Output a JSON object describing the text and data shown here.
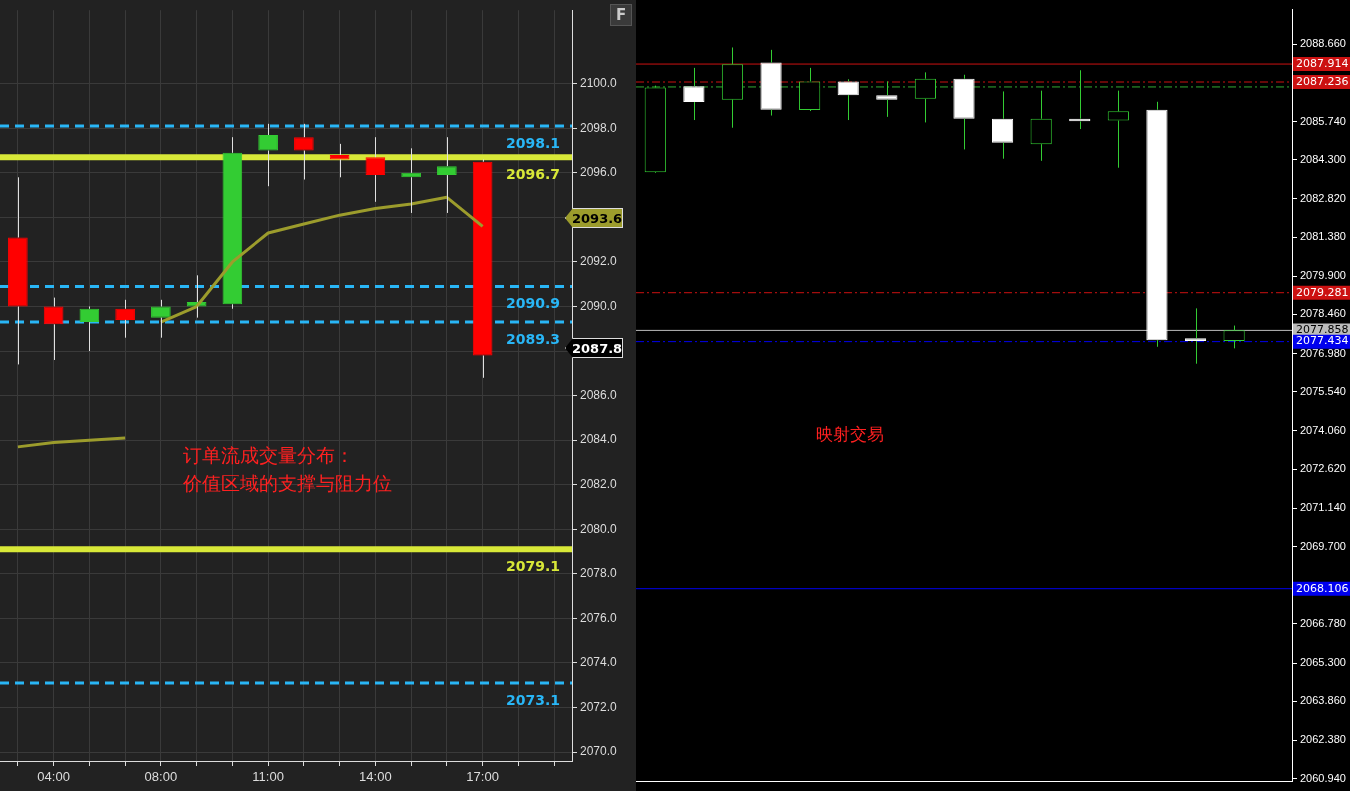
{
  "chart_data": [
    {
      "type": "candlestick",
      "categories": [
        null,
        "04:00",
        null,
        null,
        "08:00",
        null,
        null,
        "11:00",
        null,
        null,
        "14:00",
        null,
        null,
        "17:00",
        null,
        null
      ],
      "series": [
        {
          "color": "#e0e0e0",
          "colors": [
            "#ff0000",
            "#ff0000",
            "#33cc33",
            "#ff0000",
            "#33cc33",
            "#33cc33",
            "#33cc33",
            "#33cc33",
            "#ff0000",
            "#ff0000",
            "#ff0000",
            "#33cc33",
            "#33cc33",
            "#ff0000",
            null,
            null
          ],
          "ohlc": [
            [
              2093.1,
              2095.8,
              2087.4,
              2090.0
            ],
            [
              2090.0,
              2090.4,
              2087.6,
              2089.2
            ],
            [
              2089.3,
              2090.0,
              2088.0,
              2089.9
            ],
            [
              2089.9,
              2090.3,
              2088.6,
              2089.4
            ],
            [
              2089.5,
              2090.3,
              2088.6,
              2090.0
            ],
            [
              2090.0,
              2091.4,
              2089.5,
              2090.2
            ],
            [
              2090.1,
              2097.6,
              2089.9,
              2096.9
            ],
            [
              2097.0,
              2098.2,
              2095.4,
              2097.7
            ],
            [
              2097.6,
              2098.2,
              2095.7,
              2097.0
            ],
            [
              2096.8,
              2097.3,
              2095.8,
              2096.6
            ],
            [
              2096.7,
              2097.6,
              2094.7,
              2095.9
            ],
            [
              2095.8,
              2097.1,
              2094.2,
              2096.0
            ],
            [
              2095.9,
              2097.6,
              2094.2,
              2096.3
            ],
            [
              2096.5,
              2096.6,
              2086.8,
              2087.8
            ],
            null,
            null
          ]
        },
        {
          "type": "line",
          "color": "#9c9c2c",
          "values": [
            2083.7,
            2083.9,
            2084.0,
            2084.1,
            null,
            null,
            null,
            null,
            null,
            null,
            null,
            null,
            null,
            null,
            null,
            null
          ]
        },
        {
          "type": "line",
          "color": "#9c9c2c",
          "values": [
            null,
            null,
            null,
            null,
            2089.3,
            2090.0,
            2092.0,
            2093.3,
            2093.7,
            2094.1,
            2094.4,
            2094.6,
            2094.9,
            2093.6,
            null,
            null
          ]
        }
      ],
      "ylim": [
        2069.6,
        2103.3
      ],
      "yticks": [
        {
          "value": 2070,
          "label": "2070.0"
        },
        {
          "value": 2072,
          "label": "2072.0"
        },
        {
          "value": 2074,
          "label": "2074.0"
        },
        {
          "value": 2076,
          "label": "2076.0"
        },
        {
          "value": 2078,
          "label": "2078.0"
        },
        {
          "value": 2080,
          "label": "2080.0"
        },
        {
          "value": 2082,
          "label": "2082.0"
        },
        {
          "value": 2084,
          "label": "2084.0"
        },
        {
          "value": 2086,
          "label": "2086.0"
        },
        {
          "value": 2088,
          "label": null
        },
        {
          "value": 2090,
          "label": "2090.0"
        },
        {
          "value": 2092,
          "label": "2092.0"
        },
        {
          "value": 2094,
          "label": null
        },
        {
          "value": 2096,
          "label": "2096.0"
        },
        {
          "value": 2098,
          "label": "2098.0"
        },
        {
          "value": 2100,
          "label": "2100.0"
        }
      ],
      "grid": true,
      "ref_lines": [
        {
          "axis": "y",
          "value": 2098.1,
          "label": "2098.1",
          "color": "#29b6f6",
          "line_style": "dashed"
        },
        {
          "axis": "y",
          "value": 2096.7,
          "label": "2096.7",
          "color": "#d8e838",
          "line_style": "solid"
        },
        {
          "axis": "y",
          "value": 2090.9,
          "label": "2090.9",
          "color": "#29b6f6",
          "line_style": "dashed"
        },
        {
          "axis": "y",
          "value": 2089.3,
          "label": "2089.3",
          "color": "#29b6f6",
          "line_style": "dashed"
        },
        {
          "axis": "y",
          "value": 2079.1,
          "label": "2079.1",
          "color": "#d8e838",
          "line_style": "solid"
        },
        {
          "axis": "y",
          "value": 2073.1,
          "label": "2073.1",
          "color": "#29b6f6",
          "line_style": "dashed"
        }
      ],
      "annotations": [
        "F",
        "订单流成交量分布：",
        "价值区域的支撑与阻力位",
        "2093.6",
        "2087.8"
      ]
    },
    {
      "type": "candlestick",
      "categories": [
        null,
        null,
        null,
        null,
        null,
        null,
        null,
        null,
        null,
        null,
        null,
        null,
        null,
        null,
        null,
        null,
        null
      ],
      "series": [
        {
          "color": "#33cc33",
          "colors": [
            "#33cc33",
            "#ffffff",
            "#33cc33",
            "#ffffff",
            "#33cc33",
            "#ffffff",
            "#ffffff",
            "#33cc33",
            "#ffffff",
            "#ffffff",
            "#33cc33",
            "#ffffff",
            "#33cc33",
            "#ffffff",
            "#ffffff",
            "#33cc33",
            null
          ],
          "ohlc": [
            [
              2083.83,
              2087.1,
              2083.8,
              2087.03
            ],
            [
              2087.08,
              2087.77,
              2085.8,
              2086.48
            ],
            [
              2086.57,
              2088.54,
              2085.51,
              2087.91
            ],
            [
              2087.97,
              2088.45,
              2085.97,
              2086.19
            ],
            [
              2086.18,
              2087.77,
              2086.14,
              2087.26
            ],
            [
              2087.26,
              2087.34,
              2085.8,
              2086.74
            ],
            [
              2086.74,
              2087.26,
              2085.92,
              2086.57
            ],
            [
              2086.6,
              2087.6,
              2085.71,
              2087.36
            ],
            [
              2087.36,
              2087.51,
              2084.69,
              2085.85
            ],
            [
              2085.85,
              2086.88,
              2084.34,
              2084.94
            ],
            [
              2084.89,
              2086.91,
              2084.26,
              2085.85
            ],
            [
              2085.85,
              2087.68,
              2085.46,
              2085.75
            ],
            [
              2085.78,
              2086.91,
              2084.0,
              2086.13
            ],
            [
              2086.19,
              2086.49,
              2077.24,
              2077.49
            ],
            [
              2077.56,
              2078.69,
              2076.6,
              2077.46
            ],
            [
              2077.46,
              2078.04,
              2077.18,
              2077.86
            ],
            null
          ]
        }
      ],
      "ylim": [
        2060.83,
        2089.97
      ],
      "yticks": [
        {
          "value": 2060.94,
          "label": "2060.940"
        },
        {
          "value": 2062.38,
          "label": "2062.380"
        },
        {
          "value": 2063.86,
          "label": "2063.860"
        },
        {
          "value": 2065.3,
          "label": "2065.300"
        },
        {
          "value": 2066.78,
          "label": "2066.780"
        },
        {
          "value": 2069.7,
          "label": "2069.700"
        },
        {
          "value": 2071.14,
          "label": "2071.140"
        },
        {
          "value": 2072.62,
          "label": "2072.620"
        },
        {
          "value": 2074.06,
          "label": "2074.060"
        },
        {
          "value": 2075.54,
          "label": "2075.540"
        },
        {
          "value": 2076.98,
          "label": "2076.980"
        },
        {
          "value": 2078.46,
          "label": "2078.460"
        },
        {
          "value": 2079.9,
          "label": "2079.900"
        },
        {
          "value": 2081.38,
          "label": "2081.380"
        },
        {
          "value": 2082.82,
          "label": "2082.820"
        },
        {
          "value": 2084.3,
          "label": "2084.300"
        },
        {
          "value": 2085.74,
          "label": "2085.740"
        },
        {
          "value": 2088.66,
          "label": "2088.660"
        }
      ],
      "tick_labels": "y",
      "ref_lines": [
        {
          "axis": "y",
          "value": 2087.914,
          "label": "2087.914",
          "color": "#cc1111",
          "line_style": "solid"
        },
        {
          "axis": "y",
          "value": 2087.236,
          "label": "2087.236",
          "color": "#cc1111",
          "line_style": "dashed"
        },
        {
          "axis": "y",
          "value": 2087.05,
          "color": "#33aa33",
          "line_style": "dashed"
        },
        {
          "axis": "y",
          "value": 2079.281,
          "label": "2079.281",
          "color": "#cc1111",
          "line_style": "dashed"
        },
        {
          "axis": "y",
          "value": 2077.858,
          "label": "2077.858",
          "color": "#bbbbbb",
          "line_style": "solid"
        },
        {
          "axis": "y",
          "value": 2077.434,
          "label": "2077.434",
          "color": "#0000ee",
          "line_style": "dashed"
        },
        {
          "axis": "y",
          "value": 2068.106,
          "label": "2068.106",
          "color": "#0000ee",
          "line_style": "solid"
        }
      ],
      "annotations": [
        "映射交易"
      ]
    }
  ]
}
